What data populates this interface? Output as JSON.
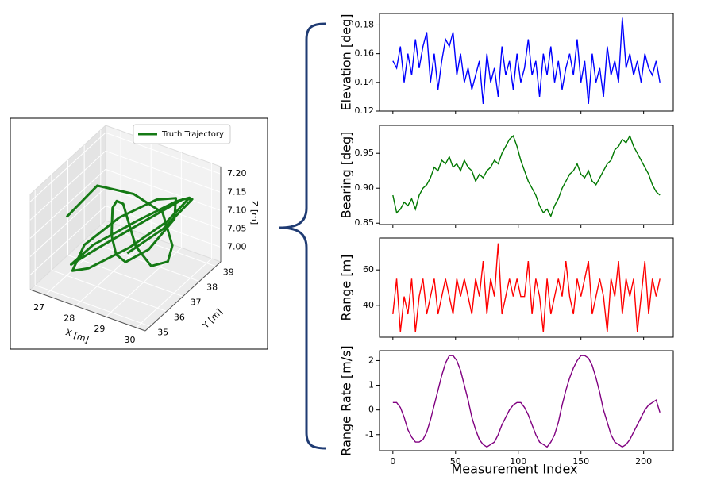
{
  "chart_data": [
    {
      "type": "line3d",
      "legend": "Truth Trajectory",
      "color": "#157a15",
      "xlabel": "X [m]",
      "ylabel": "Y [m]",
      "zlabel": "Z [m]",
      "xlim": [
        26.5,
        30.3
      ],
      "ylim": [
        34.7,
        39.3
      ],
      "zlim": [
        6.96,
        7.22
      ],
      "xticks": [
        27,
        28,
        29,
        30
      ],
      "yticks": [
        35,
        36,
        37,
        38,
        39
      ],
      "zticks": [
        {
          "value": 7,
          "label": "7.00"
        },
        7.05,
        {
          "value": 7.1,
          "label": "7.10"
        },
        7.15,
        {
          "value": 7.2,
          "label": "7.20"
        }
      ],
      "x": [
        27.0,
        27.2,
        27.8,
        28.6,
        29.3,
        29.8,
        29.9,
        29.5,
        28.8,
        28.0,
        27.3,
        27.0,
        27.4,
        28.2,
        29.0,
        29.6,
        29.8,
        29.2,
        28.4,
        27.6,
        27.1,
        27.3,
        28.0,
        28.9,
        29.5,
        29.7,
        29.1,
        28.3,
        27.5,
        27.2,
        27.8,
        28.7,
        29.4,
        29.9,
        29.6,
        29.0
      ],
      "y": [
        36.0,
        37.5,
        38.6,
        38.9,
        38.2,
        37.0,
        35.8,
        35.6,
        36.4,
        37.6,
        38.5,
        38.8,
        38.0,
        36.8,
        35.9,
        36.2,
        37.4,
        38.6,
        38.9,
        38.1,
        36.9,
        35.8,
        35.5,
        36.3,
        37.5,
        38.5,
        38.8,
        37.9,
        36.7,
        35.9,
        36.5,
        37.8,
        38.7,
        38.3,
        37.1,
        36.0
      ],
      "z": [
        7.12,
        7.15,
        7.1,
        7.06,
        7.02,
        7.04,
        7.08,
        7.13,
        7.15,
        7.12,
        7.07,
        7.03,
        7.0,
        7.02,
        7.06,
        7.1,
        7.14,
        7.13,
        7.09,
        7.05,
        7.01,
        6.99,
        7.03,
        7.08,
        7.12,
        7.15,
        7.11,
        7.07,
        7.03,
        7.0,
        7.04,
        7.09,
        7.13,
        7.16,
        7.12,
        7.08
      ]
    },
    {
      "type": "line",
      "ylabel": "Elevation [deg]",
      "color": "#0000ff",
      "xlim": [
        -10.65,
        223.65
      ],
      "ylim": [
        0.12,
        0.188
      ],
      "yticks": [
        0.12,
        0.14,
        0.16,
        0.18
      ],
      "x": [
        0,
        3,
        6,
        9,
        12,
        15,
        18,
        21,
        24,
        27,
        30,
        33,
        36,
        39,
        42,
        45,
        48,
        51,
        54,
        57,
        60,
        63,
        66,
        69,
        72,
        75,
        78,
        81,
        84,
        87,
        90,
        93,
        96,
        99,
        102,
        105,
        108,
        111,
        114,
        117,
        120,
        123,
        126,
        129,
        132,
        135,
        138,
        141,
        144,
        147,
        150,
        153,
        156,
        159,
        162,
        165,
        168,
        171,
        174,
        177,
        180,
        183,
        186,
        189,
        192,
        195,
        198,
        201,
        204,
        207,
        210,
        213
      ],
      "values": [
        0.155,
        0.15,
        0.165,
        0.14,
        0.16,
        0.145,
        0.17,
        0.15,
        0.165,
        0.175,
        0.14,
        0.16,
        0.135,
        0.155,
        0.17,
        0.165,
        0.175,
        0.145,
        0.16,
        0.14,
        0.15,
        0.135,
        0.145,
        0.155,
        0.125,
        0.16,
        0.14,
        0.15,
        0.13,
        0.165,
        0.145,
        0.155,
        0.135,
        0.16,
        0.14,
        0.15,
        0.17,
        0.145,
        0.155,
        0.13,
        0.16,
        0.145,
        0.165,
        0.14,
        0.155,
        0.135,
        0.15,
        0.16,
        0.145,
        0.17,
        0.14,
        0.155,
        0.125,
        0.16,
        0.14,
        0.15,
        0.13,
        0.165,
        0.145,
        0.155,
        0.14,
        0.185,
        0.15,
        0.16,
        0.145,
        0.155,
        0.14,
        0.16,
        0.15,
        0.145,
        0.155,
        0.14
      ]
    },
    {
      "type": "line",
      "ylabel": "Bearing [deg]",
      "color": "#007800",
      "xlim": [
        -10.65,
        223.65
      ],
      "ylim": [
        0.848,
        0.99
      ],
      "yticks": [
        0.85,
        {
          "value": 0.9,
          "label": "0.90"
        },
        0.95
      ],
      "x": [
        0,
        3,
        6,
        9,
        12,
        15,
        18,
        21,
        24,
        27,
        30,
        33,
        36,
        39,
        42,
        45,
        48,
        51,
        54,
        57,
        60,
        63,
        66,
        69,
        72,
        75,
        78,
        81,
        84,
        87,
        90,
        93,
        96,
        99,
        102,
        105,
        108,
        111,
        114,
        117,
        120,
        123,
        126,
        129,
        132,
        135,
        138,
        141,
        144,
        147,
        150,
        153,
        156,
        159,
        162,
        165,
        168,
        171,
        174,
        177,
        180,
        183,
        186,
        189,
        192,
        195,
        198,
        201,
        204,
        207,
        210,
        213
      ],
      "values": [
        0.89,
        0.865,
        0.87,
        0.88,
        0.875,
        0.885,
        0.87,
        0.89,
        0.9,
        0.905,
        0.915,
        0.93,
        0.925,
        0.94,
        0.935,
        0.945,
        0.93,
        0.935,
        0.925,
        0.94,
        0.93,
        0.925,
        0.91,
        0.92,
        0.915,
        0.925,
        0.93,
        0.94,
        0.935,
        0.95,
        0.96,
        0.97,
        0.975,
        0.96,
        0.94,
        0.925,
        0.91,
        0.9,
        0.89,
        0.875,
        0.865,
        0.87,
        0.86,
        0.875,
        0.885,
        0.9,
        0.91,
        0.92,
        0.925,
        0.935,
        0.92,
        0.915,
        0.925,
        0.91,
        0.905,
        0.915,
        0.925,
        0.935,
        0.94,
        0.955,
        0.96,
        0.97,
        0.965,
        0.975,
        0.96,
        0.95,
        0.94,
        0.93,
        0.92,
        0.905,
        0.895,
        0.89
      ]
    },
    {
      "type": "line",
      "ylabel": "Range [m]",
      "color": "#ff0000",
      "xlim": [
        -10.65,
        223.65
      ],
      "ylim": [
        22,
        78
      ],
      "yticks": [
        40,
        60
      ],
      "x": [
        0,
        3,
        6,
        9,
        12,
        15,
        18,
        21,
        24,
        27,
        30,
        33,
        36,
        39,
        42,
        45,
        48,
        51,
        54,
        57,
        60,
        63,
        66,
        69,
        72,
        75,
        78,
        81,
        84,
        87,
        90,
        93,
        96,
        99,
        102,
        105,
        108,
        111,
        114,
        117,
        120,
        123,
        126,
        129,
        132,
        135,
        138,
        141,
        144,
        147,
        150,
        153,
        156,
        159,
        162,
        165,
        168,
        171,
        174,
        177,
        180,
        183,
        186,
        189,
        192,
        195,
        198,
        201,
        204,
        207,
        210,
        213
      ],
      "values": [
        35,
        55,
        25,
        45,
        35,
        55,
        25,
        45,
        55,
        35,
        45,
        55,
        35,
        45,
        55,
        45,
        35,
        55,
        45,
        55,
        45,
        35,
        55,
        45,
        65,
        35,
        55,
        45,
        75,
        35,
        45,
        55,
        45,
        55,
        45,
        45,
        65,
        35,
        55,
        45,
        25,
        55,
        35,
        45,
        55,
        45,
        65,
        45,
        35,
        55,
        45,
        55,
        65,
        35,
        45,
        55,
        45,
        25,
        55,
        45,
        65,
        35,
        55,
        45,
        55,
        25,
        45,
        65,
        35,
        55,
        45,
        55
      ]
    },
    {
      "type": "line",
      "ylabel": "Range Rate [m/s]",
      "xlabel": "Measurement Index",
      "color": "#800080",
      "xlim": [
        -10.65,
        223.65
      ],
      "ylim": [
        -1.65,
        2.4
      ],
      "yticks": [
        -1,
        0,
        1,
        2
      ],
      "xticks": [
        0,
        50,
        100,
        150,
        200
      ],
      "x": [
        0,
        3,
        6,
        9,
        12,
        15,
        18,
        21,
        24,
        27,
        30,
        33,
        36,
        39,
        42,
        45,
        48,
        51,
        54,
        57,
        60,
        63,
        66,
        69,
        72,
        75,
        78,
        81,
        84,
        87,
        90,
        93,
        96,
        99,
        102,
        105,
        108,
        111,
        114,
        117,
        120,
        123,
        126,
        129,
        132,
        135,
        138,
        141,
        144,
        147,
        150,
        153,
        156,
        159,
        162,
        165,
        168,
        171,
        174,
        177,
        180,
        183,
        186,
        189,
        192,
        195,
        198,
        201,
        204,
        207,
        210,
        213
      ],
      "values": [
        0.3,
        0.3,
        0.1,
        -0.3,
        -0.8,
        -1.1,
        -1.3,
        -1.3,
        -1.2,
        -0.9,
        -0.4,
        0.2,
        0.8,
        1.4,
        1.9,
        2.2,
        2.2,
        2.0,
        1.6,
        1.0,
        0.4,
        -0.3,
        -0.8,
        -1.2,
        -1.4,
        -1.5,
        -1.4,
        -1.3,
        -1.0,
        -0.6,
        -0.3,
        0.0,
        0.2,
        0.3,
        0.3,
        0.1,
        -0.2,
        -0.6,
        -1.0,
        -1.3,
        -1.4,
        -1.5,
        -1.3,
        -1.0,
        -0.5,
        0.2,
        0.8,
        1.3,
        1.7,
        2.0,
        2.2,
        2.2,
        2.1,
        1.8,
        1.3,
        0.7,
        0.0,
        -0.5,
        -1.0,
        -1.3,
        -1.4,
        -1.5,
        -1.4,
        -1.2,
        -0.9,
        -0.6,
        -0.3,
        0.0,
        0.2,
        0.3,
        0.4,
        -0.1
      ]
    }
  ]
}
